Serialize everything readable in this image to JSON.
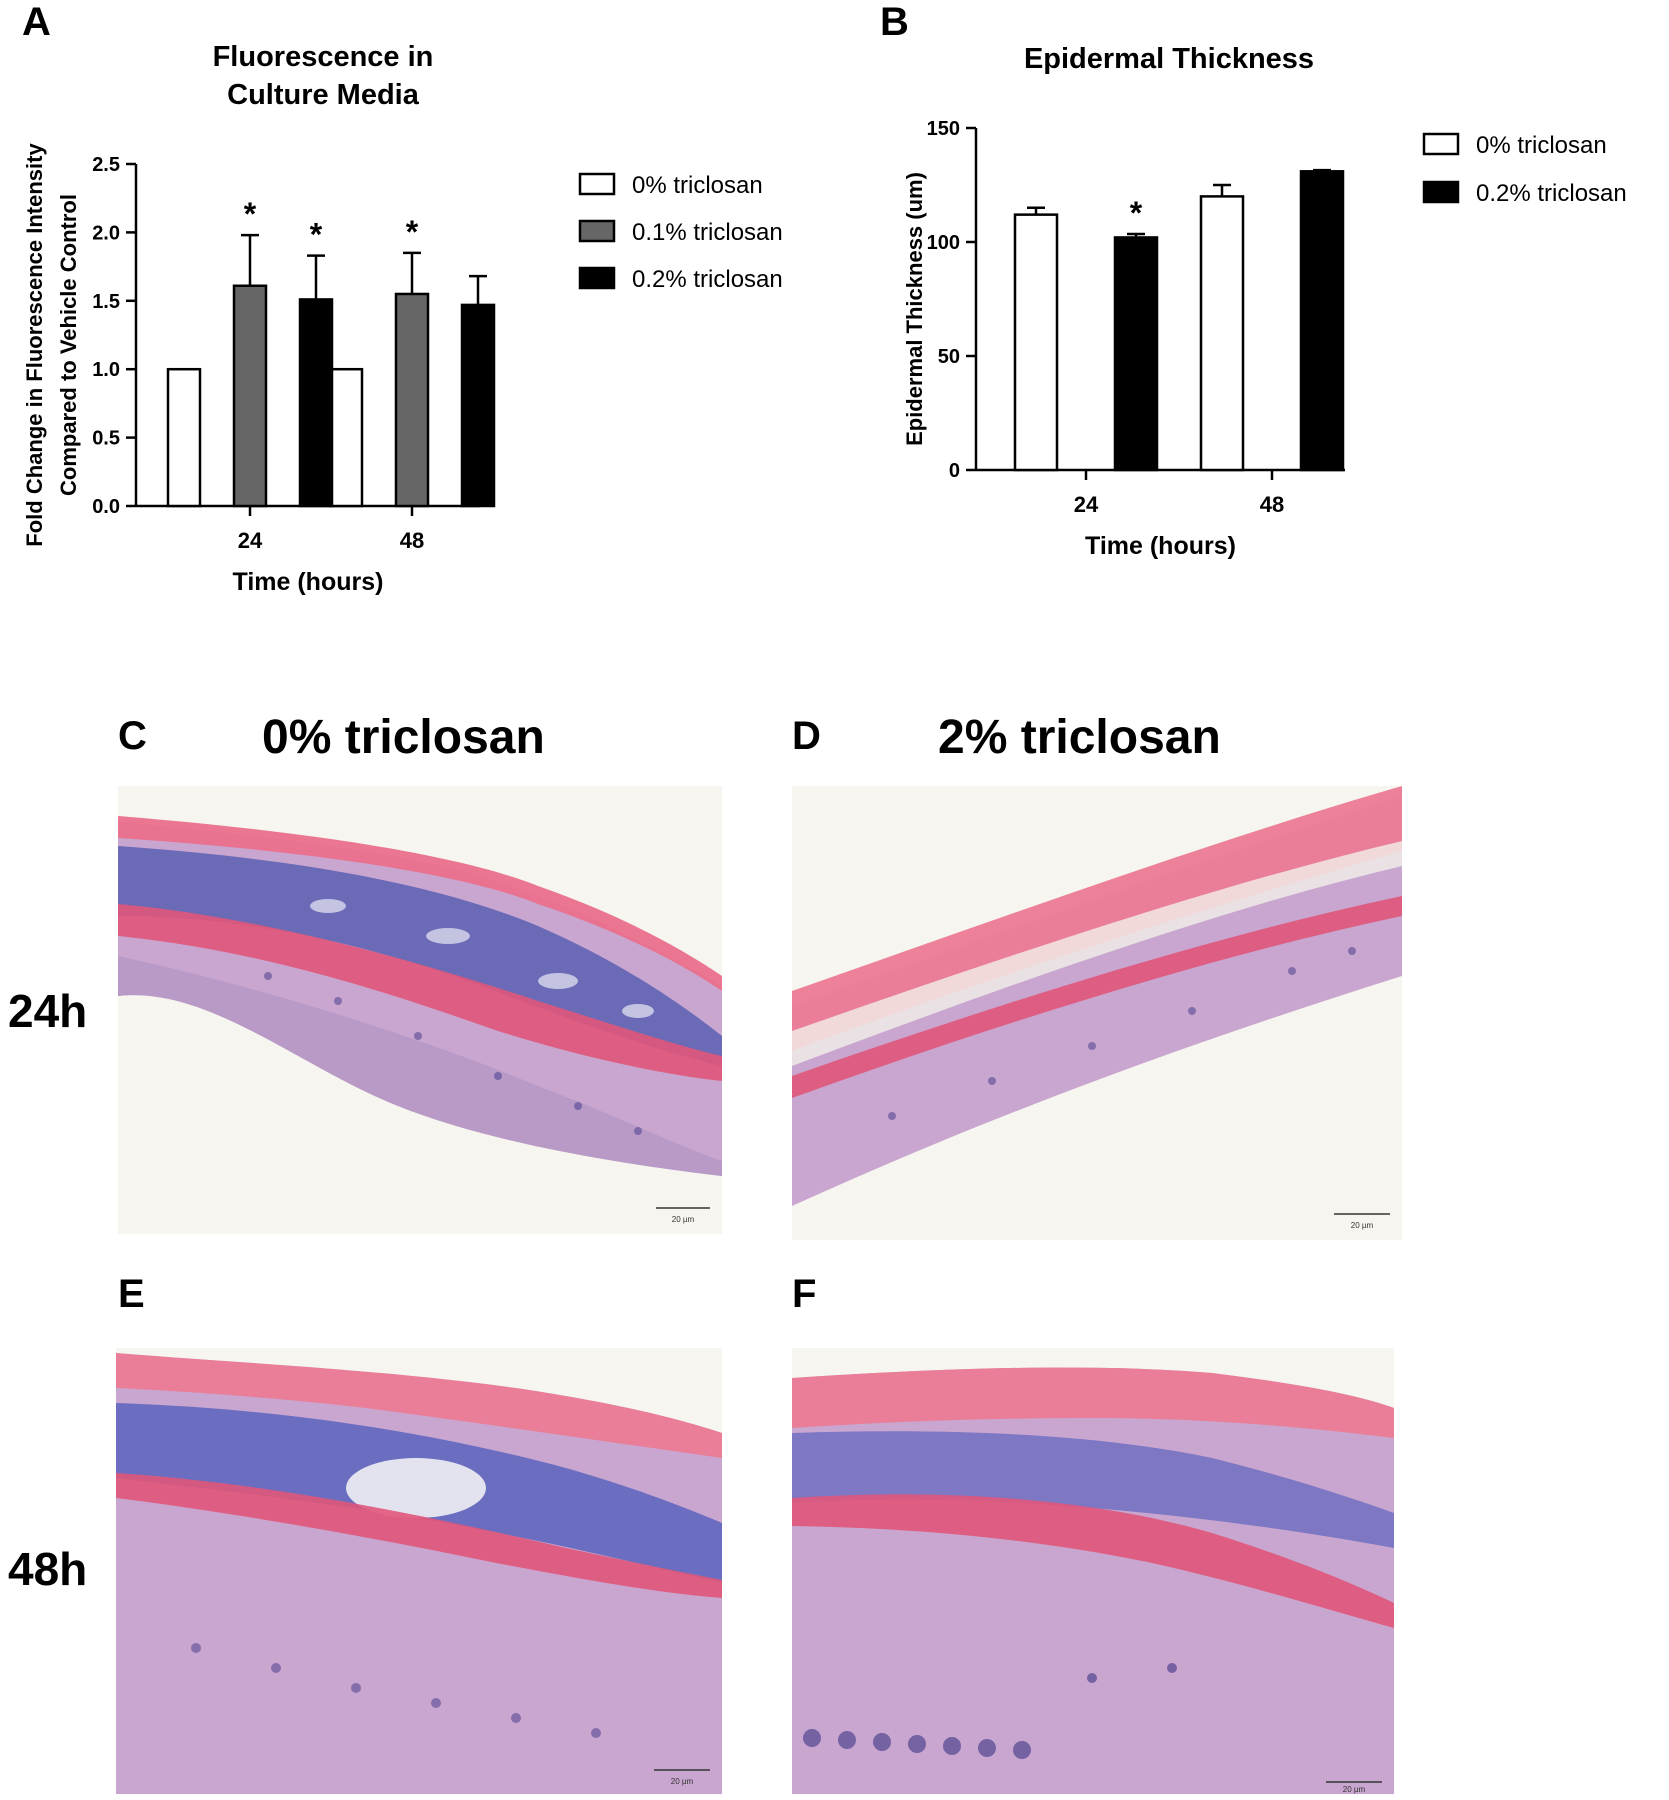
{
  "figure": {
    "panels": {
      "A": "A",
      "B": "B",
      "C": "C",
      "D": "D",
      "E": "E",
      "F": "F"
    },
    "colors": {
      "white_bar": "#ffffff",
      "gray_bar": "#666666",
      "black_bar": "#000000",
      "axis": "#000000"
    },
    "micrographs": {
      "C": {
        "title": "0% triclosan",
        "scale_bar": "20 µm"
      },
      "D": {
        "title": "2% triclosan",
        "scale_bar": "20 µm"
      },
      "E": {
        "scale_bar": "20 µm"
      },
      "F": {
        "scale_bar": "20 µm"
      }
    },
    "row_labels": {
      "row1": "24h",
      "row2": "48h"
    }
  },
  "chart_data": [
    {
      "id": "A",
      "type": "bar",
      "title": "Fluorescence in Culture Media",
      "title_lines": [
        "Fluorescence in",
        "Culture Media"
      ],
      "xlabel": "Time (hours)",
      "ylabel": "Fold Change in Fluorescence Intensity Compared to Vehicle Control",
      "ylabel_lines": [
        "Fold Change in Fluorescence Intensity",
        "Compared to Vehicle Control"
      ],
      "categories": [
        "24",
        "48"
      ],
      "ylim": [
        0,
        2.5
      ],
      "yticks": [
        0.0,
        0.5,
        1.0,
        1.5,
        2.0,
        2.5
      ],
      "ytick_labels": [
        "0.0",
        "0.5",
        "1.0",
        "1.5",
        "2.0",
        "2.5"
      ],
      "legend_position": "right",
      "series": [
        {
          "name": "0% triclosan",
          "color": "#ffffff",
          "values": [
            1.0,
            1.0
          ],
          "errors": [
            0,
            0
          ],
          "significance": [
            "",
            ""
          ]
        },
        {
          "name": "0.1% triclosan",
          "color": "#666666",
          "values": [
            1.61,
            1.55
          ],
          "errors": [
            0.37,
            0.3
          ],
          "significance": [
            "*",
            "*"
          ]
        },
        {
          "name": "0.2% triclosan",
          "color": "#000000",
          "values": [
            1.51,
            1.47
          ],
          "errors": [
            0.32,
            0.21
          ],
          "significance": [
            "*",
            ""
          ]
        }
      ]
    },
    {
      "id": "B",
      "type": "bar",
      "title": "Epidermal Thickness",
      "xlabel": "Time (hours)",
      "ylabel": "Epidermal Thickness (um)",
      "categories": [
        "24",
        "48"
      ],
      "ylim": [
        0,
        150
      ],
      "yticks": [
        0,
        50,
        100,
        150
      ],
      "ytick_labels": [
        "0",
        "50",
        "100",
        "150"
      ],
      "legend_position": "right",
      "series": [
        {
          "name": "0% triclosan",
          "color": "#ffffff",
          "values": [
            112,
            120
          ],
          "errors": [
            3,
            5
          ],
          "significance": [
            "",
            ""
          ]
        },
        {
          "name": "0.2% triclosan",
          "color": "#000000",
          "values": [
            102,
            131
          ],
          "errors": [
            1.5,
            0.5
          ],
          "significance": [
            "*",
            ""
          ]
        }
      ]
    }
  ]
}
